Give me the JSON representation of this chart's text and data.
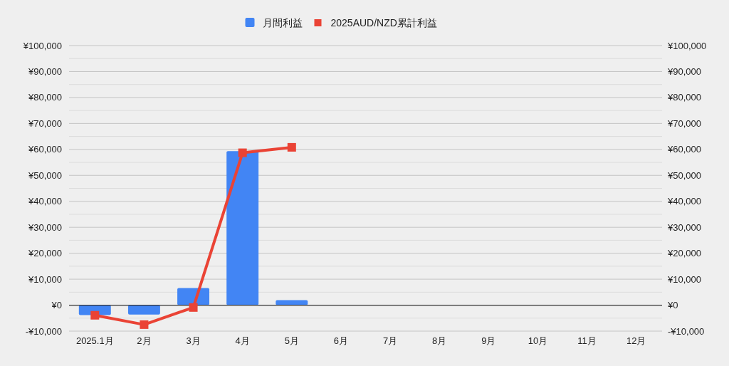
{
  "chart_data": {
    "type": "bar",
    "categories": [
      "2025.1月",
      "2月",
      "3月",
      "4月",
      "5月",
      "6月",
      "7月",
      "8月",
      "9月",
      "10月",
      "11月",
      "12月"
    ],
    "series": [
      {
        "name": "月間利益",
        "color": "#4285f4",
        "values": [
          -3800,
          -3600,
          6600,
          59300,
          1900,
          null,
          null,
          null,
          null,
          null,
          null,
          null
        ]
      },
      {
        "name": "2025AUD/NZD累計利益",
        "type": "line",
        "color": "#ea4335",
        "marker": "square",
        "values": [
          -3900,
          -7500,
          -900,
          58700,
          60800,
          null,
          null,
          null,
          null,
          null,
          null,
          null
        ]
      }
    ],
    "ylim": [
      -10000,
      100000
    ],
    "yticks": [
      {
        "value": -10000,
        "label": "-¥10,000"
      },
      {
        "value": 0,
        "label": "¥0"
      },
      {
        "value": 10000,
        "label": "¥10,000"
      },
      {
        "value": 20000,
        "label": "¥20,000"
      },
      {
        "value": 30000,
        "label": "¥30,000"
      },
      {
        "value": 40000,
        "label": "¥40,000"
      },
      {
        "value": 50000,
        "label": "¥50,000"
      },
      {
        "value": 60000,
        "label": "¥60,000"
      },
      {
        "value": 70000,
        "label": "¥70,000"
      },
      {
        "value": 80000,
        "label": "¥80,000"
      },
      {
        "value": 90000,
        "label": "¥90,000"
      },
      {
        "value": 100000,
        "label": "¥100,000"
      }
    ],
    "y2lim": [
      -10000,
      100000
    ],
    "y2ticks": [
      {
        "value": -10000,
        "label": "-¥10,000"
      },
      {
        "value": 0,
        "label": "¥0"
      },
      {
        "value": 10000,
        "label": "¥10,000"
      },
      {
        "value": 20000,
        "label": "¥20,000"
      },
      {
        "value": 30000,
        "label": "¥30,000"
      },
      {
        "value": 40000,
        "label": "¥40,000"
      },
      {
        "value": 50000,
        "label": "¥50,000"
      },
      {
        "value": 60000,
        "label": "¥60,000"
      },
      {
        "value": 70000,
        "label": "¥70,000"
      },
      {
        "value": 80000,
        "label": "¥80,000"
      },
      {
        "value": 90000,
        "label": "¥90,000"
      },
      {
        "value": 100000,
        "label": "¥100,000"
      }
    ],
    "grid": true,
    "legend": "top"
  }
}
